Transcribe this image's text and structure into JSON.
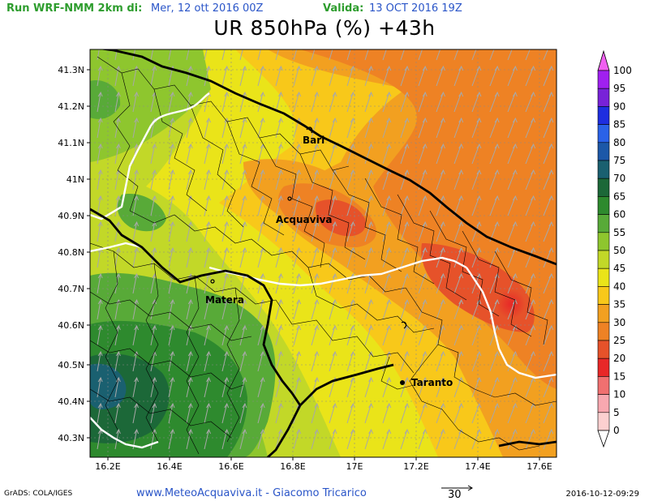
{
  "header": {
    "run_label": "Run WRF-NMM 2km di:",
    "run_date": "Mer, 12 ott 2016 00Z",
    "valid_label": "Valida:",
    "valid_date": "13 OCT 2016 19Z"
  },
  "title": "UR 850hPa (%) +43h",
  "axes": {
    "y_ticks": [
      "41.3N",
      "41.2N",
      "41.1N",
      "41N",
      "40.9N",
      "40.8N",
      "40.7N",
      "40.6N",
      "40.5N",
      "40.4N",
      "40.3N"
    ],
    "x_ticks": [
      "16.2E",
      "16.4E",
      "16.6E",
      "16.8E",
      "17E",
      "17.2E",
      "17.4E",
      "17.6E"
    ]
  },
  "cities": [
    "Bari",
    "Acquaviva",
    "Matera",
    "Taranto"
  ],
  "colorbar": {
    "levels": [
      "100",
      "95",
      "90",
      "85",
      "80",
      "75",
      "70",
      "65",
      "60",
      "55",
      "50",
      "45",
      "40",
      "35",
      "30",
      "25",
      "20",
      "15",
      "10",
      "5",
      "0"
    ],
    "colors": [
      "#a020f0",
      "#7822d8",
      "#1e2ee0",
      "#2a62e8",
      "#1c58a8",
      "#1a6070",
      "#1c6838",
      "#2e8a2e",
      "#58aa38",
      "#8ec62e",
      "#c2d828",
      "#eae419",
      "#f8c81a",
      "#f2a020",
      "#ee8224",
      "#e6522a",
      "#e82828",
      "#f07070",
      "#f8a8b0",
      "#fcd0d0"
    ],
    "top_color": "#f060f0"
  },
  "footer": {
    "credit": "GrADS: COLA/IGES",
    "site": "www.MeteoAcquaviva.it - Giacomo Tricarico",
    "vector_ref": "30",
    "timestamp": "2016-10-12-09:29"
  }
}
